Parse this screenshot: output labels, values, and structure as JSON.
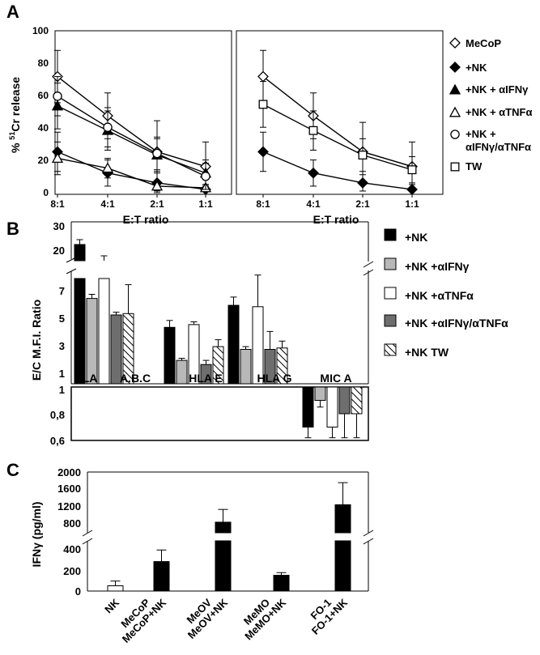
{
  "chart_data": [
    {
      "panel": "A",
      "type": "line",
      "ylabel": "% 51Cr release",
      "xlabel": "E:T ratio",
      "categories": [
        "8:1",
        "4:1",
        "2:1",
        "1:1"
      ],
      "ylim": [
        0,
        100
      ],
      "yticks": [
        0,
        20,
        40,
        60,
        80,
        100
      ],
      "series": [
        {
          "name": "MeCoP",
          "marker": "diamond-open",
          "values": [
            72,
            48,
            26,
            17
          ],
          "err": [
            16,
            14,
            19,
            15
          ]
        },
        {
          "name": "+NK",
          "marker": "diamond-filled",
          "values": [
            26,
            13,
            7,
            3
          ],
          "err": [
            12,
            8,
            6,
            3
          ]
        },
        {
          "name": "+NK + αIFNγ",
          "marker": "triangle-filled",
          "values": [
            54,
            39,
            24,
            13
          ],
          "err": [
            14,
            12,
            10,
            8
          ]
        },
        {
          "name": "+NK + αTNFα",
          "marker": "triangle-open",
          "values": [
            22,
            16,
            5,
            4
          ],
          "err": [
            10,
            6,
            3,
            2
          ]
        },
        {
          "name": "+NK + αIFNγ/αTNFα",
          "marker": "circle-open",
          "values": [
            60,
            41,
            25,
            11
          ],
          "err": [
            12,
            12,
            10,
            8
          ]
        }
      ]
    },
    {
      "panel": "A-right",
      "type": "line",
      "xlabel": "E:T ratio",
      "categories": [
        "8:1",
        "4:1",
        "2:1",
        "1:1"
      ],
      "ylim": [
        0,
        100
      ],
      "series": [
        {
          "name": "MeCoP",
          "marker": "diamond-open",
          "values": [
            72,
            48,
            26,
            17
          ],
          "err": [
            16,
            14,
            18,
            15
          ]
        },
        {
          "name": "+NK",
          "marker": "diamond-filled",
          "values": [
            26,
            13,
            7,
            3
          ],
          "err": [
            12,
            8,
            5,
            3
          ]
        },
        {
          "name": "TW",
          "marker": "square-open",
          "values": [
            55,
            39,
            24,
            15
          ],
          "err": [
            14,
            12,
            10,
            8
          ]
        }
      ]
    },
    {
      "panel": "B",
      "type": "bar",
      "ylabel": "E/C M.F.I. Ratio",
      "categories": [
        "HLA A.B.C",
        "HLA E",
        "HLA G",
        "MIC A"
      ],
      "upper_scale": {
        "range": [
          20,
          30
        ],
        "ticks": [
          20,
          30
        ]
      },
      "lower_scale": {
        "range": [
          0,
          8
        ],
        "ticks": [
          1,
          3,
          5,
          7
        ]
      },
      "inset_scale": {
        "range": [
          0.6,
          1
        ],
        "ticks": [
          "1",
          "0,8",
          "0,6"
        ]
      },
      "series": [
        {
          "name": "+NK",
          "values": [
            24,
            4.1,
            5.7,
            0.7
          ],
          "err": [
            1.5,
            0.5,
            0.6,
            0.08
          ]
        },
        {
          "name": "+NK +αIFNγ",
          "values": [
            6.2,
            1.7,
            2.5,
            0.9
          ],
          "err": [
            0.3,
            0.15,
            0.2,
            0.05
          ]
        },
        {
          "name": "+NK +αTNFα",
          "values": [
            19,
            4.3,
            5.6,
            0.7
          ],
          "err": [
            1.5,
            0.2,
            2.3,
            0.08
          ]
        },
        {
          "name": "+NK +αIFNγ/αTNFα",
          "values": [
            5,
            1.4,
            2.5,
            0.8
          ],
          "err": [
            0.2,
            0.3,
            1.3,
            0.18
          ]
        },
        {
          "name": "+NK TW",
          "values": [
            5.1,
            2.7,
            2.6,
            0.8
          ],
          "err": [
            2.1,
            0.5,
            0.5,
            0.18
          ]
        }
      ]
    },
    {
      "panel": "C",
      "type": "bar",
      "ylabel": "IFNγ (pg/ml)",
      "categories": [
        "NK",
        "MeCoP",
        "MeCoP+NK",
        "MeOV",
        "MeOV+NK",
        "MeMO",
        "MeMO+NK",
        "FO-1",
        "FO-1+NK"
      ],
      "upper_ticks": [
        800,
        1200,
        1600,
        2000
      ],
      "lower_ticks": [
        0,
        200,
        400
      ],
      "values": [
        50,
        0,
        280,
        0,
        820,
        0,
        150,
        0,
        1230
      ],
      "err": [
        45,
        0,
        110,
        0,
        300,
        0,
        25,
        0,
        520
      ]
    }
  ],
  "labels": {
    "panelA": "A",
    "panelB": "B",
    "panelC": "C",
    "legendA": [
      "MeCoP",
      "+NK",
      "+NK + αIFNγ",
      "+NK + αTNFα",
      "+NK +",
      "αIFNγ/αTNFα",
      "TW"
    ],
    "legendB": [
      "+NK",
      "+NK +αIFNγ",
      "+NK +αTNFα",
      "+NK +αIFNγ/αTNFα",
      "+NK TW"
    ],
    "yaxisA": "% 51Cr release",
    "xaxisA": "E:T ratio",
    "xaxisA2": "E:T ratio",
    "yaxisB": "E/C M.F.I. Ratio",
    "groupsB": [
      "HLA",
      "A.B.C",
      "HLA E",
      "HLA G",
      "MIC A"
    ],
    "yaxisC": "IFNγ (pg/ml)",
    "xlabelsC": [
      "NK",
      "MeCoP",
      "MeCoP+NK",
      "MeOV",
      "MeOV+NK",
      "MeMO",
      "MeMO+NK",
      "FO-1",
      "FO-1+NK"
    ],
    "ticksA": [
      "0",
      "20",
      "40",
      "60",
      "80",
      "100"
    ],
    "ticksB_upper": [
      "30",
      "20"
    ],
    "ticksB_lower": [
      "7",
      "5",
      "3",
      "1"
    ],
    "ticksB_inset": [
      "1",
      "0,8",
      "0,6"
    ],
    "ticksC": [
      "2000",
      "1600",
      "1200",
      "800",
      "400",
      "200",
      "0"
    ]
  }
}
